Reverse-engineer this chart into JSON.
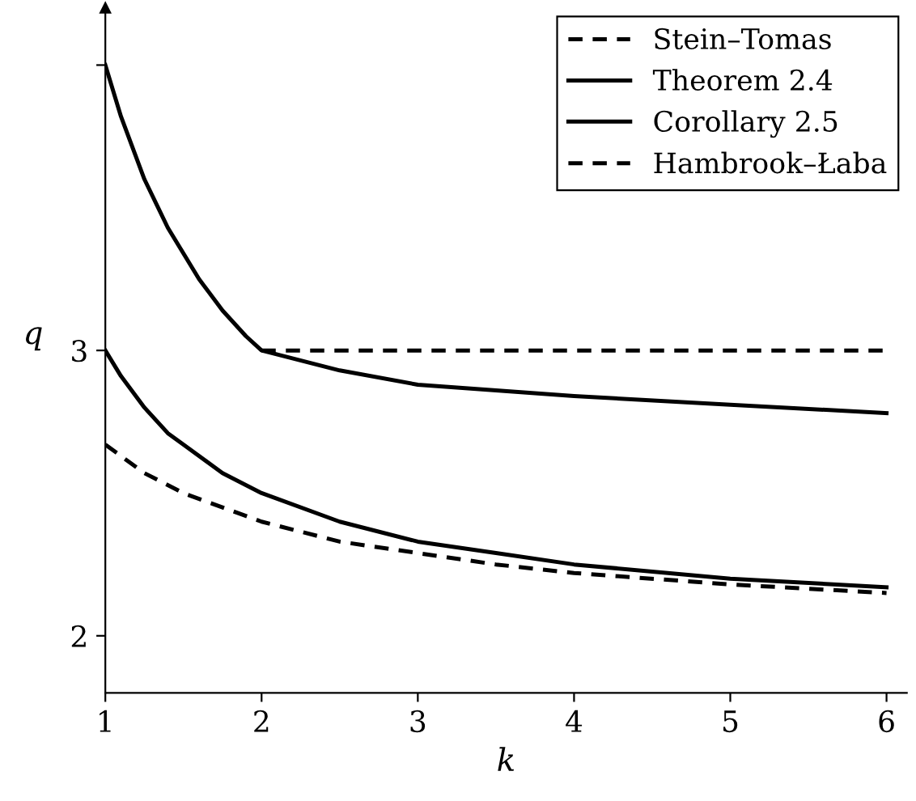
{
  "chart_data": {
    "type": "line",
    "xlabel": "k",
    "ylabel": "q",
    "xlim": [
      1,
      6.13
    ],
    "ylim": [
      1.8,
      4.2
    ],
    "xticks": [
      1,
      2,
      3,
      4,
      5,
      6
    ],
    "yticks": [
      2,
      3,
      {
        "value": 4,
        "label": null
      }
    ],
    "grid": false,
    "legend": "top right",
    "series": [
      {
        "name": "Stein–Tomas",
        "color": "#000000",
        "line_style": "dashed",
        "x": [
          2,
          3,
          4,
          5,
          6
        ],
        "values": [
          3,
          3,
          3,
          3,
          3
        ]
      },
      {
        "name": "Theorem 2.4",
        "color": "#000000",
        "line_style": "solid",
        "x": [
          1,
          1.1,
          1.25,
          1.4,
          1.5,
          1.6,
          1.75,
          1.9,
          2,
          2.5,
          3,
          4,
          5,
          6
        ],
        "values": [
          4,
          3.82,
          3.6,
          3.43,
          3.34,
          3.25,
          3.14,
          3.05,
          3,
          2.93,
          2.88,
          2.84,
          2.81,
          2.78
        ]
      },
      {
        "name": "Corollary 2.5",
        "color": "#000000",
        "line_style": "solid",
        "x": [
          1,
          1.1,
          1.25,
          1.4,
          1.5,
          1.75,
          2,
          2.5,
          3,
          3.5,
          4,
          5,
          6
        ],
        "values": [
          3,
          2.91,
          2.8,
          2.71,
          2.67,
          2.57,
          2.5,
          2.4,
          2.33,
          2.29,
          2.25,
          2.2,
          2.17
        ]
      },
      {
        "name": "Hambrook–Łaba",
        "color": "#000000",
        "line_style": "dashed",
        "x": [
          1,
          1.25,
          1.5,
          2,
          2.5,
          3,
          3.5,
          4,
          5,
          6
        ],
        "values": [
          2.67,
          2.57,
          2.5,
          2.4,
          2.33,
          2.29,
          2.25,
          2.22,
          2.18,
          2.15
        ]
      }
    ]
  }
}
